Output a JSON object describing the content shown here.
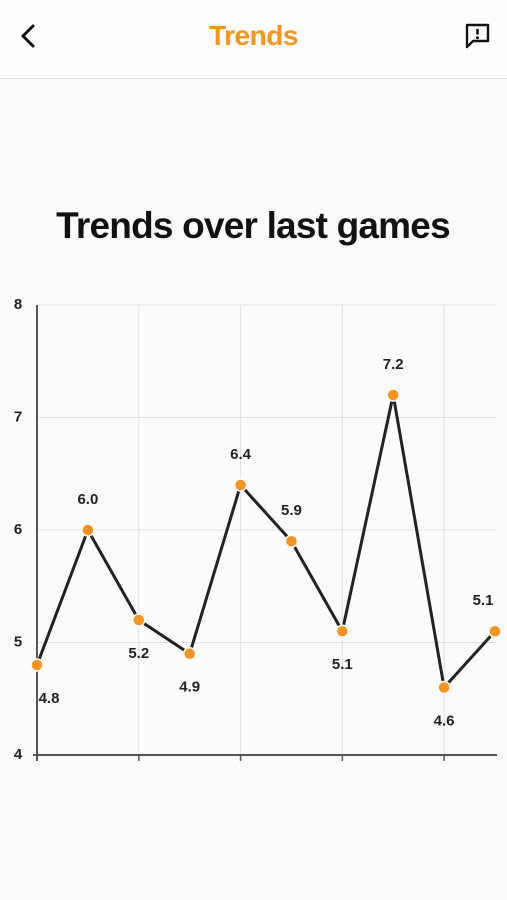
{
  "header": {
    "title": "Trends"
  },
  "chart_data": {
    "type": "line",
    "title": "Trends over last games",
    "categories": [
      null,
      null,
      null,
      null,
      null,
      null,
      null,
      null,
      null,
      null
    ],
    "values": [
      4.8,
      6.0,
      5.2,
      4.9,
      6.4,
      5.9,
      5.1,
      7.2,
      4.6,
      5.1
    ],
    "value_labels": [
      "4.8",
      "6.0",
      "5.2",
      "4.9",
      "6.4",
      "5.9",
      "5.1",
      "7.2",
      "4.6",
      "5.1"
    ],
    "color": "#222222",
    "marker_color": "#f7931e",
    "ylim": [
      4,
      8
    ],
    "yticks": [
      4,
      5,
      6,
      7,
      8
    ],
    "grid": true
  }
}
